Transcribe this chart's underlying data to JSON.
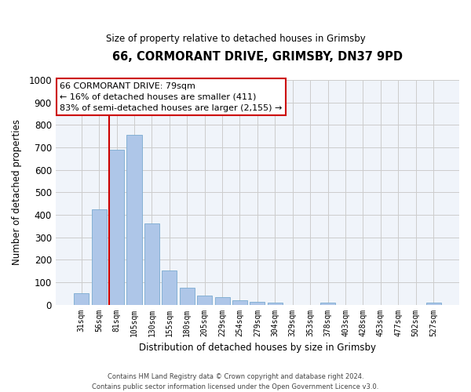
{
  "title": "66, CORMORANT DRIVE, GRIMSBY, DN37 9PD",
  "subtitle": "Size of property relative to detached houses in Grimsby",
  "xlabel": "Distribution of detached houses by size in Grimsby",
  "ylabel": "Number of detached properties",
  "footer_line1": "Contains HM Land Registry data © Crown copyright and database right 2024.",
  "footer_line2": "Contains public sector information licensed under the Open Government Licence v3.0.",
  "bar_labels": [
    "31sqm",
    "56sqm",
    "81sqm",
    "105sqm",
    "130sqm",
    "155sqm",
    "180sqm",
    "205sqm",
    "229sqm",
    "254sqm",
    "279sqm",
    "304sqm",
    "329sqm",
    "353sqm",
    "378sqm",
    "403sqm",
    "428sqm",
    "453sqm",
    "477sqm",
    "502sqm",
    "527sqm"
  ],
  "bar_values": [
    52,
    425,
    688,
    757,
    362,
    153,
    75,
    40,
    32,
    18,
    12,
    10,
    0,
    0,
    8,
    0,
    0,
    0,
    0,
    0,
    8
  ],
  "bar_color": "#aec6e8",
  "bar_edge_color": "#7aaad0",
  "vline_color": "#cc0000",
  "vline_x_index": 2,
  "ylim": [
    0,
    1000
  ],
  "yticks": [
    0,
    100,
    200,
    300,
    400,
    500,
    600,
    700,
    800,
    900,
    1000
  ],
  "annotation_title": "66 CORMORANT DRIVE: 79sqm",
  "annotation_line1": "← 16% of detached houses are smaller (411)",
  "annotation_line2": "83% of semi-detached houses are larger (2,155) →",
  "annotation_box_facecolor": "#ffffff",
  "annotation_box_edgecolor": "#cc0000",
  "grid_color": "#cccccc",
  "bg_color": "#f0f4fa"
}
